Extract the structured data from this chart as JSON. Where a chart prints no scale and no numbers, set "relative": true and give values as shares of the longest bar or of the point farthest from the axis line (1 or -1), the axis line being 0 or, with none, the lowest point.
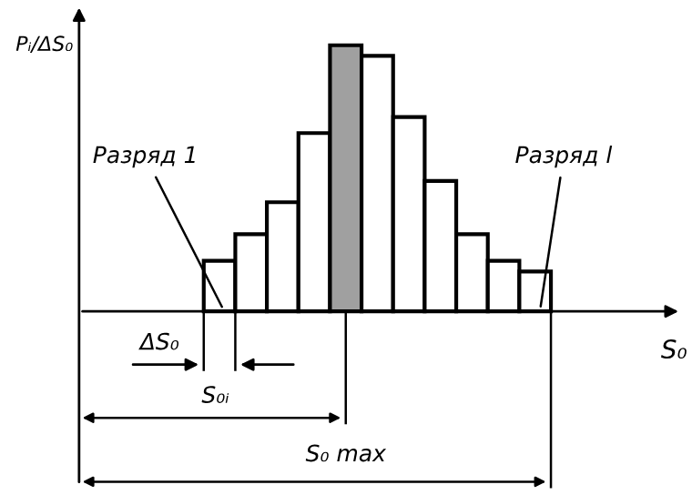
{
  "chart_data": {
    "type": "bar",
    "relative": true,
    "xlabel": "S₀",
    "categories": [
      null,
      null,
      null,
      null,
      null,
      null,
      null,
      null,
      null,
      null,
      null
    ],
    "values": [
      0.19,
      0.29,
      0.41,
      0.67,
      1,
      0.96,
      0.73,
      0.49,
      0.29,
      0.19,
      0.15
    ],
    "colors": [
      "#ffffff",
      "#ffffff",
      "#ffffff",
      "#ffffff",
      "#a0a0a0",
      "#ffffff",
      "#ffffff",
      "#ffffff",
      "#ffffff",
      "#ffffff",
      "#ffffff"
    ],
    "annotations": [
      "Разряд 1",
      "Разряд l",
      "ΔS₀",
      "S₀ᵢ",
      "S₀ max",
      "Pᵢ/ΔS₀"
    ],
    "legend": false
  }
}
